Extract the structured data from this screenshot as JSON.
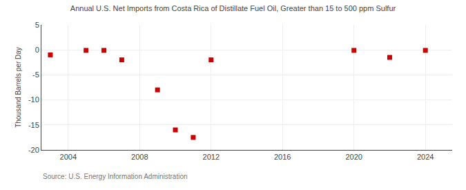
{
  "chart_data": {
    "type": "scatter",
    "title": "Annual U.S. Net Imports from Costa Rica of Distillate Fuel Oil, Greater than 15 to 500 ppm Sulfur",
    "ylabel": "Thousand Barrels per Day",
    "annotations": [
      "Source: U.S. Energy Information Administration"
    ],
    "x": [
      2003,
      2005,
      2006,
      2007,
      2009,
      2010,
      2011,
      2012,
      2020,
      2022,
      2024
    ],
    "values": [
      -1.0,
      -0.1,
      -0.1,
      -2.0,
      -8.0,
      -16.0,
      -17.5,
      -2.0,
      -0.1,
      -1.5,
      -0.1
    ],
    "color": "#cc0000",
    "marker": "square",
    "xlim": [
      2002.5,
      2025.5
    ],
    "ylim": [
      -20,
      5
    ],
    "xticks": [
      2004,
      2008,
      2012,
      2016,
      2020,
      2024
    ],
    "yticks": [
      -20,
      -15,
      -10,
      -5,
      0,
      5
    ],
    "grid": true
  }
}
